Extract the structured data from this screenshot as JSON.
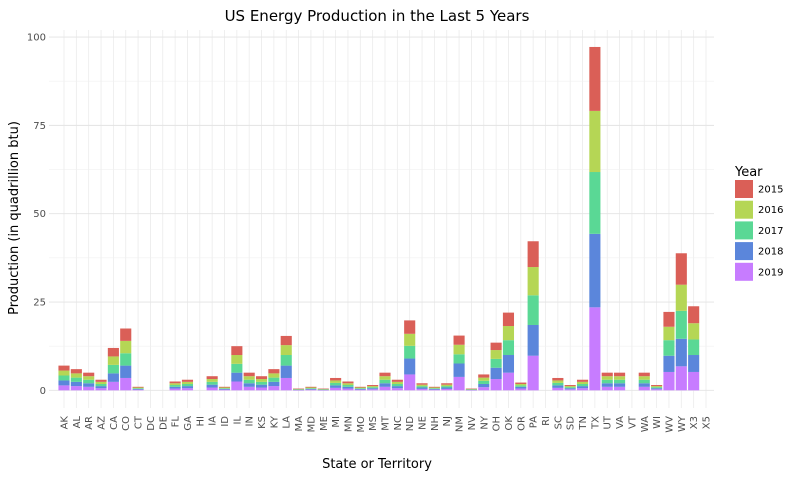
{
  "chart_data": {
    "type": "bar",
    "stacked": true,
    "title": "US Energy Production in the Last 5 Years",
    "xlabel": "State or Territory",
    "ylabel": "Production (in quadrillion btu)",
    "ylim": [
      -5,
      102
    ],
    "yticks": [
      0,
      25,
      50,
      75,
      100
    ],
    "grid": true,
    "legend": {
      "title": "Year",
      "placement": "right"
    },
    "categories": [
      "AK",
      "AL",
      "AR",
      "AZ",
      "CA",
      "CO",
      "CT",
      "DC",
      "DE",
      "FL",
      "GA",
      "HI",
      "IA",
      "ID",
      "IL",
      "IN",
      "KS",
      "KY",
      "LA",
      "MA",
      "MD",
      "ME",
      "MI",
      "MN",
      "MO",
      "MS",
      "MT",
      "NC",
      "ND",
      "NE",
      "NH",
      "NJ",
      "NM",
      "NV",
      "NY",
      "OH",
      "OK",
      "OR",
      "PA",
      "RI",
      "SC",
      "SD",
      "TN",
      "TX",
      "UT",
      "VA",
      "VT",
      "WA",
      "WI",
      "WV",
      "WY",
      "X3",
      "X5"
    ],
    "series": [
      {
        "name": "2019",
        "color": "#C77CFF",
        "values": [
          1.4,
          1.2,
          1.0,
          0.6,
          2.4,
          3.5,
          0.2,
          0,
          0,
          0.5,
          0.6,
          0,
          0.8,
          0.2,
          2.5,
          1.0,
          0.8,
          1.2,
          3.5,
          0.1,
          0.2,
          0.1,
          0.7,
          0.5,
          0.2,
          0.3,
          1.0,
          0.6,
          4.5,
          0.4,
          0.2,
          0.4,
          3.8,
          0.1,
          0.9,
          3.2,
          5.0,
          0.5,
          9.8,
          0,
          0.7,
          0.3,
          0.6,
          23.5,
          1.0,
          1.0,
          0,
          1.0,
          0.3,
          5.2,
          6.8,
          5.2,
          0
        ]
      },
      {
        "name": "2018",
        "color": "#5B86DB",
        "values": [
          1.4,
          1.2,
          1.0,
          0.6,
          2.4,
          3.5,
          0.2,
          0,
          0,
          0.5,
          0.6,
          0,
          0.8,
          0.2,
          2.5,
          1.0,
          0.8,
          1.2,
          3.5,
          0.1,
          0.2,
          0.1,
          0.7,
          0.5,
          0.2,
          0.3,
          1.0,
          0.6,
          4.5,
          0.4,
          0.2,
          0.4,
          3.8,
          0.1,
          0.9,
          3.2,
          5.0,
          0.5,
          8.7,
          0,
          0.7,
          0.3,
          0.6,
          20.8,
          1.0,
          1.0,
          0,
          1.0,
          0.3,
          4.6,
          7.8,
          4.8,
          0
        ]
      },
      {
        "name": "2017",
        "color": "#5AD895",
        "values": [
          1.4,
          1.2,
          1.0,
          0.6,
          2.4,
          3.5,
          0.2,
          0,
          0,
          0.5,
          0.6,
          0,
          0.8,
          0.2,
          2.5,
          1.0,
          0.8,
          1.2,
          3.0,
          0.1,
          0.2,
          0.1,
          0.7,
          0.5,
          0.2,
          0.3,
          1.0,
          0.6,
          3.6,
          0.4,
          0.2,
          0.4,
          2.6,
          0.1,
          0.9,
          2.5,
          4.2,
          0.4,
          8.4,
          0,
          0.7,
          0.3,
          0.6,
          17.5,
          1.0,
          1.0,
          0,
          1.0,
          0.3,
          4.4,
          7.9,
          4.4,
          0
        ]
      },
      {
        "name": "2016",
        "color": "#B5D655",
        "values": [
          1.4,
          1.2,
          1.0,
          0.6,
          2.4,
          3.5,
          0.2,
          0,
          0,
          0.5,
          0.6,
          0,
          0.8,
          0.2,
          2.5,
          1.0,
          0.8,
          1.2,
          2.8,
          0.1,
          0.2,
          0.1,
          0.7,
          0.5,
          0.2,
          0.3,
          1.0,
          0.6,
          3.4,
          0.4,
          0.2,
          0.4,
          2.7,
          0.1,
          0.9,
          2.5,
          4.0,
          0.4,
          8.0,
          0,
          0.7,
          0.3,
          0.6,
          17.3,
          1.0,
          1.0,
          0,
          1.0,
          0.3,
          3.8,
          7.4,
          4.6,
          0
        ]
      },
      {
        "name": "2015",
        "color": "#DA5F57",
        "values": [
          1.4,
          1.2,
          1.0,
          0.6,
          2.4,
          3.5,
          0.2,
          0,
          0,
          0.5,
          0.6,
          0,
          0.8,
          0.2,
          2.5,
          1.0,
          0.8,
          1.2,
          2.6,
          0.1,
          0.2,
          0.1,
          0.7,
          0.5,
          0.2,
          0.3,
          1.0,
          0.6,
          3.8,
          0.4,
          0.2,
          0.4,
          2.6,
          0.1,
          0.9,
          2.1,
          3.8,
          0.4,
          7.3,
          0,
          0.7,
          0.3,
          0.6,
          18.1,
          1.0,
          1.0,
          0,
          1.0,
          0.3,
          4.2,
          8.9,
          4.8,
          0
        ]
      }
    ],
    "legend_order": [
      "2015",
      "2016",
      "2017",
      "2018",
      "2019"
    ]
  }
}
